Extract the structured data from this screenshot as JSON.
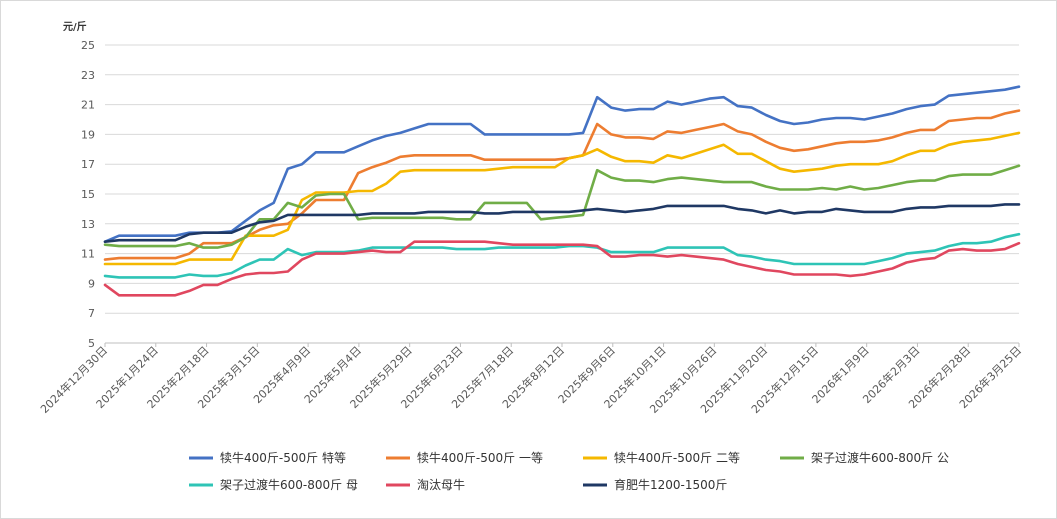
{
  "chart_data": {
    "type": "line",
    "title": "",
    "ylabel": "元/斤",
    "xlabel": "",
    "ylim": [
      5,
      25
    ],
    "yticks": [
      5,
      7,
      9,
      11,
      13,
      15,
      17,
      19,
      21,
      23,
      25
    ],
    "grid": "horizontal",
    "legend_position": "bottom",
    "x_tick_labels": [
      "2024年12月30日",
      "2025年1月24日",
      "2025年2月18日",
      "2025年3月15日",
      "2025年4月9日",
      "2025年5月4日",
      "2025年5月29日",
      "2025年6月23日",
      "2025年7月18日",
      "2025年8月12日",
      "2025年9月6日",
      "2025年10月1日",
      "2025年10月26日",
      "2025年11月20日",
      "2025年12月15日",
      "2026年1月9日",
      "2026年2月3日",
      "2026年2月28日",
      "2026年3月25日"
    ],
    "n_points": 66,
    "series": [
      {
        "name": "犊牛400斤-500斤 特等",
        "color": "#4472C4",
        "values": [
          11.8,
          12.2,
          12.2,
          12.2,
          12.2,
          12.2,
          12.4,
          12.4,
          12.4,
          12.5,
          13.2,
          13.9,
          14.4,
          16.7,
          17,
          17.8,
          17.8,
          17.8,
          18.2,
          18.6,
          18.9,
          19.1,
          19.4,
          19.7,
          19.7,
          19.7,
          19.7,
          19.0,
          19.0,
          19.0,
          19.0,
          19.0,
          19.0,
          19.0,
          19.1,
          21.5,
          20.8,
          20.6,
          20.7,
          20.7,
          21.2,
          21.0,
          21.2,
          21.4,
          21.5,
          20.9,
          20.8,
          20.3,
          19.9,
          19.7,
          19.8,
          20.0,
          20.1,
          20.1,
          20.0,
          20.2,
          20.4,
          20.7,
          20.9,
          21.0,
          21.6,
          21.7,
          21.8,
          21.9,
          22.0,
          22.2
        ]
      },
      {
        "name": "犊牛400斤-500斤 一等",
        "color": "#ED7D31",
        "values": [
          10.6,
          10.7,
          10.7,
          10.7,
          10.7,
          10.7,
          11.0,
          11.7,
          11.7,
          11.7,
          12.1,
          12.6,
          12.9,
          13.0,
          13.7,
          14.6,
          14.6,
          14.6,
          16.4,
          16.8,
          17.1,
          17.5,
          17.6,
          17.6,
          17.6,
          17.6,
          17.6,
          17.3,
          17.3,
          17.3,
          17.3,
          17.3,
          17.3,
          17.4,
          17.6,
          19.7,
          19.0,
          18.8,
          18.8,
          18.7,
          19.2,
          19.1,
          19.3,
          19.5,
          19.7,
          19.2,
          19.0,
          18.5,
          18.1,
          17.9,
          18.0,
          18.2,
          18.4,
          18.5,
          18.5,
          18.6,
          18.8,
          19.1,
          19.3,
          19.3,
          19.9,
          20.0,
          20.1,
          20.1,
          20.4,
          20.6
        ]
      },
      {
        "name": "犊牛400斤-500斤 二等",
        "color": "#F5B800",
        "values": [
          10.3,
          10.3,
          10.3,
          10.3,
          10.3,
          10.3,
          10.6,
          10.6,
          10.6,
          10.6,
          12.2,
          12.2,
          12.2,
          12.6,
          14.6,
          15.1,
          15.1,
          15.1,
          15.2,
          15.2,
          15.7,
          16.5,
          16.6,
          16.6,
          16.6,
          16.6,
          16.6,
          16.6,
          16.7,
          16.8,
          16.8,
          16.8,
          16.8,
          17.4,
          17.6,
          18.0,
          17.5,
          17.2,
          17.2,
          17.1,
          17.6,
          17.4,
          17.7,
          18.0,
          18.3,
          17.7,
          17.7,
          17.2,
          16.7,
          16.5,
          16.6,
          16.7,
          16.9,
          17.0,
          17.0,
          17.0,
          17.2,
          17.6,
          17.9,
          17.9,
          18.3,
          18.5,
          18.6,
          18.7,
          18.9,
          19.1
        ]
      },
      {
        "name": "架子过渡牛600-800斤 公",
        "color": "#70AD47",
        "values": [
          11.6,
          11.5,
          11.5,
          11.5,
          11.5,
          11.5,
          11.7,
          11.4,
          11.4,
          11.6,
          12.1,
          13.3,
          13.3,
          14.4,
          14.1,
          14.9,
          15.0,
          15.0,
          13.3,
          13.4,
          13.4,
          13.4,
          13.4,
          13.4,
          13.4,
          13.3,
          13.3,
          14.4,
          14.4,
          14.4,
          14.4,
          13.3,
          13.4,
          13.5,
          13.6,
          16.6,
          16.1,
          15.9,
          15.9,
          15.8,
          16.0,
          16.1,
          16.0,
          15.9,
          15.8,
          15.8,
          15.8,
          15.5,
          15.3,
          15.3,
          15.3,
          15.4,
          15.3,
          15.5,
          15.3,
          15.4,
          15.6,
          15.8,
          15.9,
          15.9,
          16.2,
          16.3,
          16.3,
          16.3,
          16.6,
          16.9
        ]
      },
      {
        "name": "架子过渡牛600-800斤 母",
        "color": "#2EC4B6",
        "values": [
          9.5,
          9.4,
          9.4,
          9.4,
          9.4,
          9.4,
          9.6,
          9.5,
          9.5,
          9.7,
          10.2,
          10.6,
          10.6,
          11.3,
          10.9,
          11.1,
          11.1,
          11.1,
          11.2,
          11.4,
          11.4,
          11.4,
          11.4,
          11.4,
          11.4,
          11.3,
          11.3,
          11.3,
          11.4,
          11.4,
          11.4,
          11.4,
          11.4,
          11.5,
          11.5,
          11.4,
          11.1,
          11.1,
          11.1,
          11.1,
          11.4,
          11.4,
          11.4,
          11.4,
          11.4,
          10.9,
          10.8,
          10.6,
          10.5,
          10.3,
          10.3,
          10.3,
          10.3,
          10.3,
          10.3,
          10.5,
          10.7,
          11.0,
          11.1,
          11.2,
          11.5,
          11.7,
          11.7,
          11.8,
          12.1,
          12.3
        ]
      },
      {
        "name": "淘汰母牛",
        "color": "#E0475F",
        "values": [
          8.9,
          8.2,
          8.2,
          8.2,
          8.2,
          8.2,
          8.5,
          8.9,
          8.9,
          9.3,
          9.6,
          9.7,
          9.7,
          9.8,
          10.6,
          11.0,
          11.0,
          11.0,
          11.1,
          11.2,
          11.1,
          11.1,
          11.8,
          11.8,
          11.8,
          11.8,
          11.8,
          11.8,
          11.7,
          11.6,
          11.6,
          11.6,
          11.6,
          11.6,
          11.6,
          11.5,
          10.8,
          10.8,
          10.9,
          10.9,
          10.8,
          10.9,
          10.8,
          10.7,
          10.6,
          10.3,
          10.1,
          9.9,
          9.8,
          9.6,
          9.6,
          9.6,
          9.6,
          9.5,
          9.6,
          9.8,
          10.0,
          10.4,
          10.6,
          10.7,
          11.2,
          11.3,
          11.2,
          11.2,
          11.3,
          11.7
        ]
      },
      {
        "name": "育肥牛1200-1500斤",
        "color": "#1F3864",
        "values": [
          11.8,
          11.9,
          11.9,
          11.9,
          11.9,
          11.9,
          12.3,
          12.4,
          12.4,
          12.4,
          12.8,
          13.1,
          13.2,
          13.6,
          13.6,
          13.6,
          13.6,
          13.6,
          13.6,
          13.7,
          13.7,
          13.7,
          13.7,
          13.8,
          13.8,
          13.8,
          13.8,
          13.7,
          13.7,
          13.8,
          13.8,
          13.8,
          13.8,
          13.8,
          13.9,
          14.0,
          13.9,
          13.8,
          13.9,
          14.0,
          14.2,
          14.2,
          14.2,
          14.2,
          14.2,
          14.0,
          13.9,
          13.7,
          13.9,
          13.7,
          13.8,
          13.8,
          14.0,
          13.9,
          13.8,
          13.8,
          13.8,
          14.0,
          14.1,
          14.1,
          14.2,
          14.2,
          14.2,
          14.2,
          14.3,
          14.3
        ]
      }
    ]
  }
}
